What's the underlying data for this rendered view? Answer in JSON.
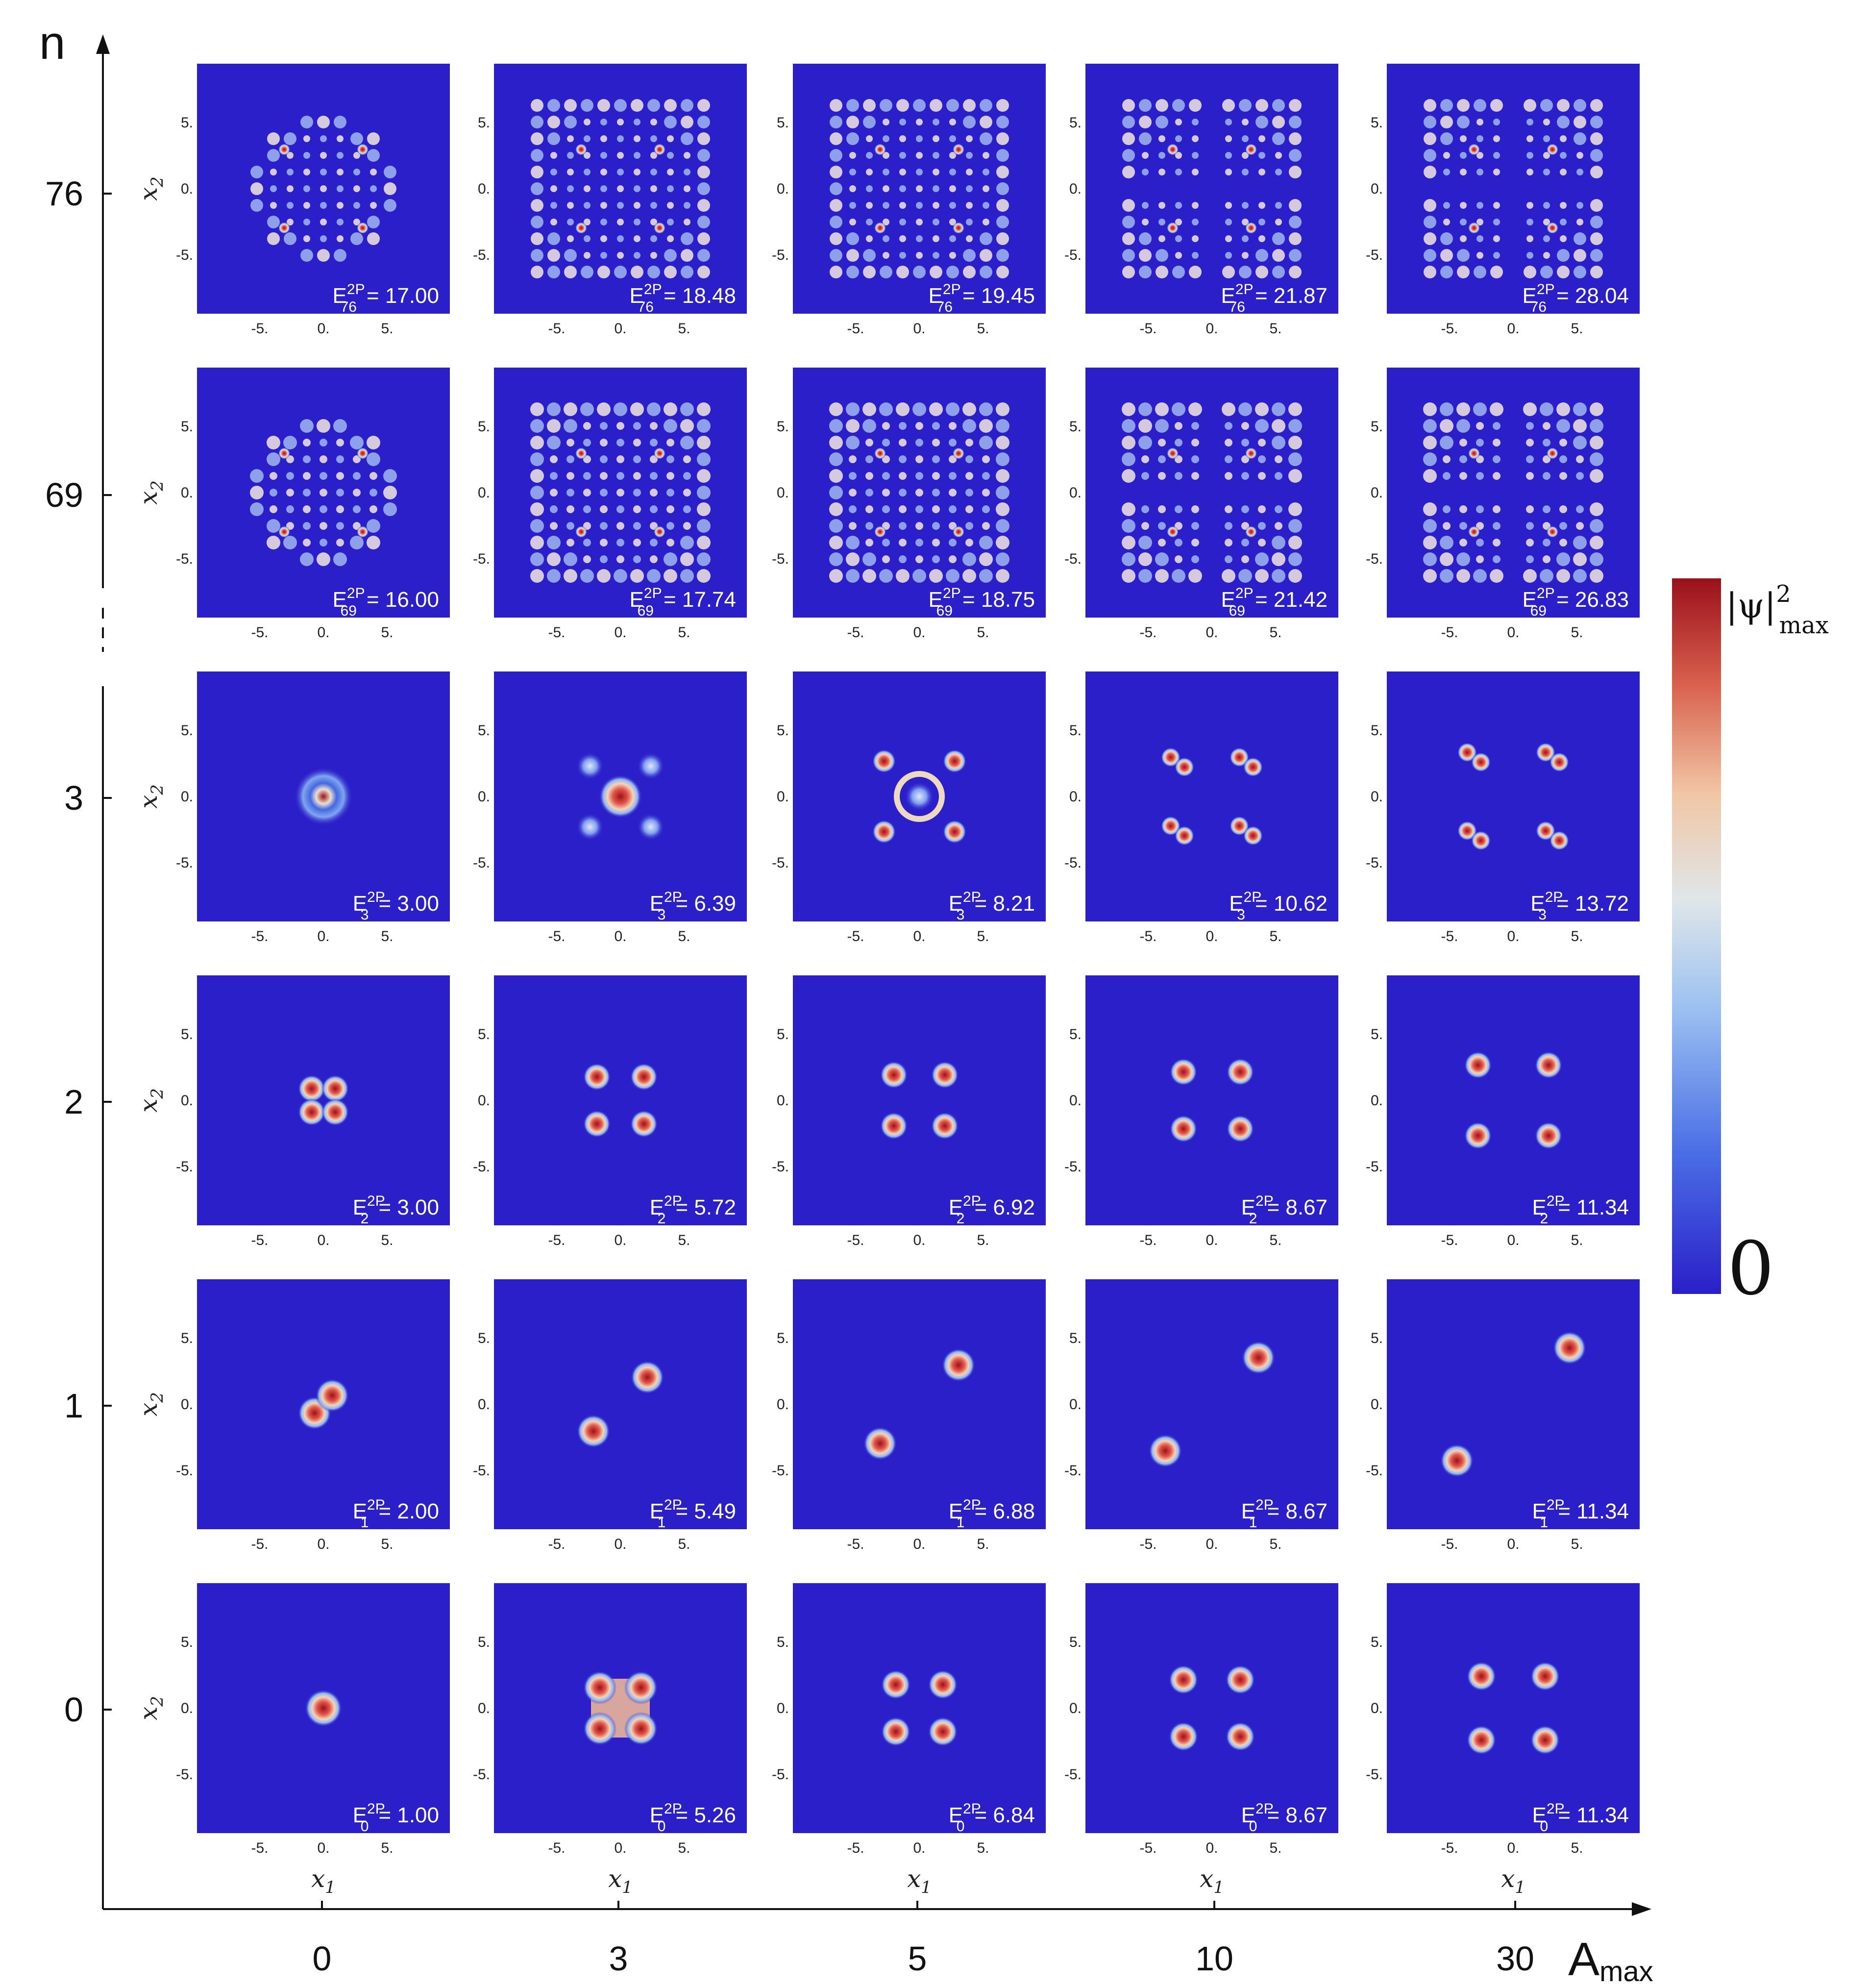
{
  "figure": {
    "y_axis_label": "n",
    "x_axis_label": "A",
    "x_axis_label_sub": "max",
    "panel_x_label": "x",
    "panel_x_sub": "1",
    "panel_y_label": "x",
    "panel_y_sub": "2",
    "tick_labels": [
      "-5.",
      "0.",
      "5."
    ],
    "energy_symbol": "E",
    "energy_sup": "2P",
    "colorbar": {
      "top_label": "|ψ|",
      "top_sup": "2",
      "top_sub": "max",
      "bottom_label": "0"
    },
    "colors": {
      "panel_bg": "#2a1fc8",
      "peak": "#a3131b"
    }
  },
  "chart_data": {
    "type": "grid-of-density-plots",
    "columns_Amax": [
      0,
      3,
      5,
      10,
      30
    ],
    "rows_n": [
      76,
      69,
      3,
      2,
      1,
      0
    ],
    "axis_break_between_rows": [
      69,
      3
    ],
    "panel_axes": {
      "x1_ticks": [
        -5,
        0,
        5
      ],
      "x2_ticks": [
        -5,
        0,
        5
      ]
    },
    "colorbar_range": [
      "0",
      "|ψ|²max"
    ],
    "energies": {
      "76": [
        "17.00",
        "18.48",
        "19.45",
        "21.87",
        "28.04"
      ],
      "69": [
        "16.00",
        "17.74",
        "18.75",
        "21.42",
        "26.83"
      ],
      "3": [
        "3.00",
        "6.39",
        "8.21",
        "10.62",
        "13.72"
      ],
      "2": [
        "3.00",
        "5.72",
        "6.92",
        "8.67",
        "11.34"
      ],
      "1": [
        "2.00",
        "5.49",
        "6.88",
        "8.67",
        "11.34"
      ],
      "0": [
        "1.00",
        "5.26",
        "6.84",
        "8.67",
        "11.34"
      ]
    }
  }
}
